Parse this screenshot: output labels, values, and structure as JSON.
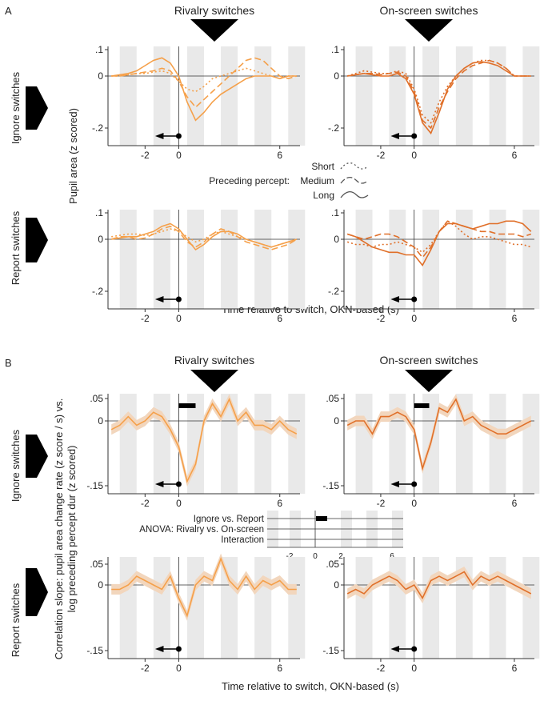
{
  "panel_labels": {
    "a": "A",
    "b": "B"
  },
  "column_titles": {
    "left": "Rivalry switches",
    "right": "On-screen switches"
  },
  "row_labels": {
    "ignore": "Ignore switches",
    "report": "Report switches"
  },
  "ylabel_a": "Pupil area (z scored)",
  "ylabel_b_line1": "Correlation slope: pupil area change rate (z score / s)  vs.",
  "ylabel_b_line2": "log preceding percept dur (z scored)",
  "xlabel": "Time relative to switch, OKN-based (s)",
  "legend": {
    "title": "Preceding percept:",
    "items": [
      "Short",
      "Medium",
      "Long"
    ]
  },
  "anova_legend": {
    "rows": [
      "Ignore vs. Report",
      "ANOVA: Rivalry vs. On-screen",
      "Interaction"
    ],
    "xticks": [
      "-2",
      "0",
      "2",
      "6"
    ]
  },
  "colors": {
    "rivalry": "#f5a04a",
    "onscreen": "#e0702a",
    "band": "#f2d6bd",
    "stripe": "#e9e9e9"
  },
  "chart_data": [
    {
      "type": "line",
      "panel": "A",
      "row": "Ignore switches",
      "column": "Rivalry switches",
      "x": [
        -4,
        -3.5,
        -3,
        -2.5,
        -2,
        -1.5,
        -1,
        -0.5,
        0,
        0.5,
        1,
        1.5,
        2,
        2.5,
        3,
        3.5,
        4,
        4.5,
        5,
        5.5,
        6,
        6.5,
        7
      ],
      "series": [
        {
          "name": "Short",
          "values": [
            0,
            0,
            0.005,
            0.01,
            0.01,
            0.015,
            0.02,
            0.01,
            -0.02,
            -0.05,
            -0.06,
            -0.04,
            -0.01,
            0.0,
            0.01,
            0.02,
            0.03,
            0.02,
            0.01,
            0.0,
            -0.01,
            0.0,
            0.0
          ]
        },
        {
          "name": "Medium",
          "values": [
            0,
            0,
            0.005,
            0.01,
            0.015,
            0.02,
            0.03,
            0.02,
            -0.02,
            -0.08,
            -0.12,
            -0.09,
            -0.06,
            -0.03,
            0.0,
            0.03,
            0.06,
            0.07,
            0.06,
            0.03,
            0.0,
            -0.01,
            0.0
          ]
        },
        {
          "name": "Long",
          "values": [
            0,
            0.005,
            0.01,
            0.02,
            0.04,
            0.06,
            0.07,
            0.05,
            0.0,
            -0.1,
            -0.17,
            -0.14,
            -0.1,
            -0.07,
            -0.05,
            -0.03,
            -0.01,
            0.0,
            0.0,
            0.0,
            -0.01,
            0.0,
            0.0
          ]
        }
      ],
      "ylim": [
        -0.25,
        0.1
      ],
      "yticks": [
        ".1",
        "0",
        "-.2"
      ],
      "xticks": [
        "-2",
        "0",
        "6"
      ]
    },
    {
      "type": "line",
      "panel": "A",
      "row": "Ignore switches",
      "column": "On-screen switches",
      "x": [
        -4,
        -3.5,
        -3,
        -2.5,
        -2,
        -1.5,
        -1,
        -0.5,
        0,
        0.5,
        1,
        1.5,
        2,
        2.5,
        3,
        3.5,
        4,
        4.5,
        5,
        5.5,
        6,
        6.5,
        7
      ],
      "series": [
        {
          "name": "Short",
          "values": [
            0,
            0.01,
            0.02,
            0.015,
            0.01,
            0.01,
            0.02,
            0.01,
            -0.05,
            -0.15,
            -0.18,
            -0.1,
            -0.04,
            0.0,
            0.03,
            0.05,
            0.06,
            0.06,
            0.05,
            0.03,
            0.0,
            0.0,
            0.0
          ]
        },
        {
          "name": "Medium",
          "values": [
            0,
            0.005,
            0.01,
            0.01,
            0.005,
            0.01,
            0.015,
            0.0,
            -0.06,
            -0.17,
            -0.2,
            -0.12,
            -0.06,
            -0.01,
            0.02,
            0.04,
            0.05,
            0.06,
            0.05,
            0.03,
            0.0,
            0.0,
            0.0
          ]
        },
        {
          "name": "Long",
          "values": [
            0,
            0.005,
            0.01,
            0.005,
            0.0,
            0.0,
            0.01,
            -0.01,
            -0.07,
            -0.18,
            -0.22,
            -0.14,
            -0.05,
            0.0,
            0.03,
            0.05,
            0.055,
            0.05,
            0.04,
            0.02,
            0.0,
            0.0,
            0.0
          ]
        }
      ],
      "ylim": [
        -0.25,
        0.1
      ],
      "yticks": [
        ".1",
        "0",
        "-.2"
      ],
      "xticks": [
        "-2",
        "0",
        "6"
      ]
    },
    {
      "type": "line",
      "panel": "A",
      "row": "Report switches",
      "column": "Rivalry switches",
      "x": [
        -4,
        -3.5,
        -3,
        -2.5,
        -2,
        -1.5,
        -1,
        -0.5,
        0,
        0.5,
        1,
        1.5,
        2,
        2.5,
        3,
        3.5,
        4,
        4.5,
        5,
        5.5,
        6,
        6.5,
        7
      ],
      "series": [
        {
          "name": "Short",
          "values": [
            0.01,
            0.015,
            0.02,
            0.02,
            0.015,
            0.02,
            0.03,
            0.04,
            0.03,
            0.01,
            -0.01,
            0.0,
            0.02,
            0.03,
            0.02,
            0.01,
            0.0,
            -0.01,
            -0.02,
            -0.03,
            -0.02,
            -0.01,
            0.0
          ]
        },
        {
          "name": "Medium",
          "values": [
            0,
            0.01,
            0.01,
            0.0,
            0.005,
            0.02,
            0.04,
            0.05,
            0.03,
            -0.01,
            -0.03,
            -0.01,
            0.02,
            0.04,
            0.03,
            0.01,
            -0.01,
            -0.02,
            -0.03,
            -0.04,
            -0.03,
            -0.02,
            0.0
          ]
        },
        {
          "name": "Long",
          "values": [
            0,
            0.005,
            0.01,
            0.01,
            0.02,
            0.03,
            0.05,
            0.06,
            0.04,
            0.0,
            -0.04,
            -0.02,
            0.01,
            0.03,
            0.03,
            0.02,
            0.0,
            -0.01,
            -0.02,
            -0.03,
            -0.02,
            -0.01,
            0.0
          ]
        }
      ],
      "ylim": [
        -0.25,
        0.1
      ],
      "yticks": [
        ".1",
        "0",
        "-.2"
      ],
      "xticks": [
        "-2",
        "0",
        "6"
      ]
    },
    {
      "type": "line",
      "panel": "A",
      "row": "Report switches",
      "column": "On-screen switches",
      "x": [
        -4,
        -3.5,
        -3,
        -2.5,
        -2,
        -1.5,
        -1,
        -0.5,
        0,
        0.5,
        1,
        1.5,
        2,
        2.5,
        3,
        3.5,
        4,
        4.5,
        5,
        5.5,
        6,
        6.5,
        7
      ],
      "series": [
        {
          "name": "Short",
          "values": [
            -0.01,
            -0.02,
            -0.02,
            -0.03,
            -0.02,
            -0.02,
            -0.01,
            -0.02,
            -0.03,
            -0.05,
            -0.02,
            0.03,
            0.07,
            0.05,
            0.02,
            0.0,
            0.01,
            0.01,
            0.0,
            -0.01,
            -0.02,
            -0.02,
            -0.03
          ]
        },
        {
          "name": "Medium",
          "values": [
            0.02,
            0.01,
            0.0,
            0.01,
            0.02,
            0.02,
            0.01,
            -0.01,
            -0.03,
            -0.07,
            -0.03,
            0.03,
            0.07,
            0.06,
            0.05,
            0.04,
            0.03,
            0.03,
            0.02,
            0.02,
            0.02,
            0.01,
            0.02
          ]
        },
        {
          "name": "Long",
          "values": [
            0.02,
            0.01,
            -0.01,
            -0.03,
            -0.04,
            -0.05,
            -0.05,
            -0.06,
            -0.06,
            -0.1,
            -0.04,
            0.03,
            0.06,
            0.06,
            0.05,
            0.04,
            0.05,
            0.06,
            0.06,
            0.07,
            0.07,
            0.06,
            0.03
          ]
        }
      ],
      "ylim": [
        -0.25,
        0.1
      ],
      "yticks": [
        ".1",
        "0",
        "-.2"
      ],
      "xticks": [
        "-2",
        "0",
        "6"
      ]
    },
    {
      "type": "area",
      "panel": "B",
      "row": "Ignore switches",
      "column": "Rivalry switches",
      "x": [
        -4,
        -3.5,
        -3,
        -2.5,
        -2,
        -1.5,
        -1,
        -0.5,
        0,
        0.5,
        1,
        1.5,
        2,
        2.5,
        3,
        3.5,
        4,
        4.5,
        5,
        5.5,
        6,
        6.5,
        7
      ],
      "values": [
        -0.02,
        -0.01,
        0.01,
        -0.01,
        0.0,
        0.02,
        0.01,
        -0.02,
        -0.06,
        -0.14,
        -0.1,
        0.0,
        0.04,
        0.01,
        0.05,
        0.0,
        0.02,
        -0.01,
        -0.01,
        -0.02,
        0.0,
        -0.02,
        -0.03
      ],
      "sig_bar": [
        0,
        1
      ],
      "ylim": [
        -0.15,
        0.05
      ],
      "yticks": [
        ".05",
        "0",
        "-.15"
      ],
      "xticks": [
        "-2",
        "0",
        "6"
      ]
    },
    {
      "type": "area",
      "panel": "B",
      "row": "Ignore switches",
      "column": "On-screen switches",
      "x": [
        -4,
        -3.5,
        -3,
        -2.5,
        -2,
        -1.5,
        -1,
        -0.5,
        0,
        0.5,
        1,
        1.5,
        2,
        2.5,
        3,
        3.5,
        4,
        4.5,
        5,
        5.5,
        6,
        6.5,
        7
      ],
      "values": [
        -0.01,
        0.0,
        0.0,
        -0.03,
        0.01,
        0.01,
        0.02,
        0.01,
        -0.02,
        -0.11,
        -0.05,
        0.03,
        0.02,
        0.05,
        0.0,
        0.01,
        -0.01,
        -0.02,
        -0.03,
        -0.03,
        -0.02,
        -0.01,
        0.0
      ],
      "sig_bar": [
        0,
        0.9
      ],
      "ylim": [
        -0.15,
        0.05
      ],
      "yticks": [
        ".05",
        "0",
        "-.15"
      ],
      "xticks": [
        "-2",
        "0",
        "6"
      ]
    },
    {
      "type": "area",
      "panel": "B",
      "row": "Report switches",
      "column": "Rivalry switches",
      "x": [
        -4,
        -3.5,
        -3,
        -2.5,
        -2,
        -1.5,
        -1,
        -0.5,
        0,
        0.5,
        1,
        1.5,
        2,
        2.5,
        3,
        3.5,
        4,
        4.5,
        5,
        5.5,
        6,
        6.5,
        7
      ],
      "values": [
        -0.01,
        -0.01,
        0.0,
        0.02,
        0.01,
        0.0,
        -0.01,
        0.02,
        -0.03,
        -0.07,
        0.0,
        0.02,
        0.01,
        0.06,
        0.01,
        -0.01,
        0.02,
        -0.01,
        0.01,
        0.0,
        0.01,
        -0.01,
        -0.01
      ],
      "ylim": [
        -0.15,
        0.05
      ],
      "yticks": [
        ".05",
        "0",
        "-.15"
      ],
      "xticks": [
        "-2",
        "0",
        "6"
      ]
    },
    {
      "type": "area",
      "panel": "B",
      "row": "Report switches",
      "column": "On-screen switches",
      "x": [
        -4,
        -3.5,
        -3,
        -2.5,
        -2,
        -1.5,
        -1,
        -0.5,
        0,
        0.5,
        1,
        1.5,
        2,
        2.5,
        3,
        3.5,
        4,
        4.5,
        5,
        5.5,
        6,
        6.5,
        7
      ],
      "values": [
        -0.02,
        -0.01,
        -0.02,
        0.0,
        0.01,
        0.02,
        0.01,
        -0.01,
        0.0,
        -0.03,
        0.01,
        0.02,
        0.01,
        0.02,
        0.03,
        0.0,
        0.02,
        0.01,
        0.02,
        0.01,
        0.0,
        -0.01,
        -0.02
      ],
      "ylim": [
        -0.15,
        0.05
      ],
      "yticks": [
        ".05",
        "0",
        "-.15"
      ],
      "xticks": [
        "-2",
        "0",
        "6"
      ]
    }
  ]
}
